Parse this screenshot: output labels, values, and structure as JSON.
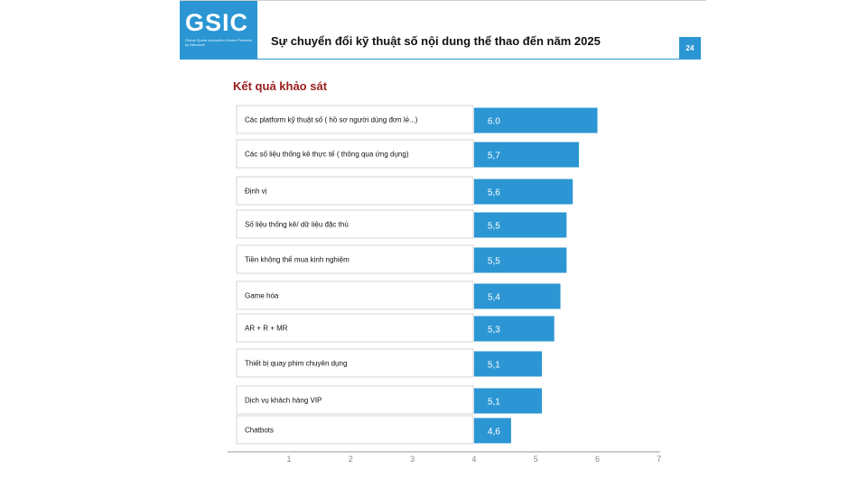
{
  "header": {
    "logo_text": "GSIC",
    "logo_subtext": "Global Sports Innovation Center Powered by Microsoft",
    "title": "Sự chuyển đổi kỹ thuật số nội dung thể thao đến năm 2025",
    "page_number": "24"
  },
  "section_title": "Kết quả khảo sát",
  "colors": {
    "accent": "#2b96d3",
    "section_title": "#9b1c1c",
    "bar": "#2b96d3"
  },
  "chart_data": {
    "type": "bar",
    "orientation": "horizontal",
    "categories": [
      "Các platform kỹ thuật số ( hồ sơ người dùng đơn lẻ...)",
      "Các số liệu thống kê thực tế ( thông qua ứng dụng)",
      "Định vị",
      "Số liệu thống kê/ dữ liệu đặc thù",
      "Tiền không thể mua kinh nghiệm",
      "Game hóa",
      "AR + R + MR",
      "Thiết bị quay phim chuyên dụng",
      "Dịch vụ khách hàng VIP",
      "Chatbots"
    ],
    "values": [
      6.0,
      5.7,
      5.6,
      5.5,
      5.5,
      5.4,
      5.3,
      5.1,
      5.1,
      4.6
    ],
    "value_labels": [
      "6.0",
      "5,7",
      "5,6",
      "5,5",
      "5,5",
      "5,4",
      "5,3",
      "5,1",
      "5,1",
      "4,6"
    ],
    "xlim": [
      0,
      7
    ],
    "x_ticks": [
      "1",
      "2",
      "3",
      "4",
      "5",
      "6",
      "7"
    ],
    "grid": false
  }
}
